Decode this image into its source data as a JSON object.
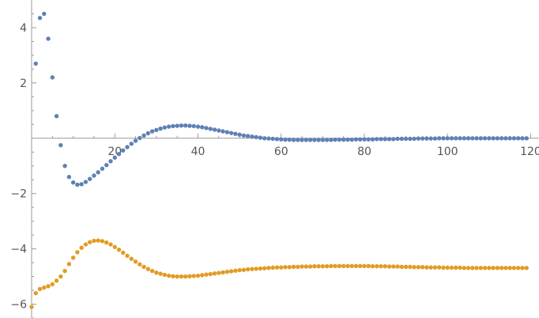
{
  "chart_data": {
    "type": "scatter",
    "title": "",
    "xlabel": "",
    "ylabel": "",
    "xlim": [
      0,
      122
    ],
    "ylim": [
      -6.5,
      5
    ],
    "grid": false,
    "x_ticks": [
      {
        "value": 20,
        "label": "20"
      },
      {
        "value": 40,
        "label": "40"
      },
      {
        "value": 60,
        "label": "60"
      },
      {
        "value": 80,
        "label": "80"
      },
      {
        "value": 100,
        "label": "100"
      },
      {
        "value": 120,
        "label": "120"
      }
    ],
    "y_ticks": [
      {
        "value": 4,
        "label": "4"
      },
      {
        "value": 2,
        "label": "2"
      },
      {
        "value": -2,
        "label": "−2"
      },
      {
        "value": -4,
        "label": "−4"
      },
      {
        "value": -6,
        "label": "−6"
      }
    ],
    "series": [
      {
        "color": "#5E81B5",
        "points": [
          [
            1,
            2.7
          ],
          [
            2,
            4.35
          ],
          [
            3,
            4.5
          ],
          [
            4,
            3.6
          ],
          [
            5,
            2.2
          ],
          [
            6,
            0.8
          ],
          [
            7,
            -0.25
          ],
          [
            8,
            -1.0
          ],
          [
            9,
            -1.4
          ],
          [
            10,
            -1.6
          ],
          [
            11,
            -1.68
          ],
          [
            12,
            -1.66
          ],
          [
            13,
            -1.58
          ],
          [
            14,
            -1.47
          ],
          [
            15,
            -1.35
          ],
          [
            16,
            -1.23
          ],
          [
            17,
            -1.1
          ],
          [
            18,
            -0.97
          ],
          [
            19,
            -0.83
          ],
          [
            20,
            -0.7
          ],
          [
            21,
            -0.57
          ],
          [
            22,
            -0.44
          ],
          [
            23,
            -0.32
          ],
          [
            24,
            -0.2
          ],
          [
            25,
            -0.09
          ],
          [
            26,
            0.01
          ],
          [
            27,
            0.1
          ],
          [
            28,
            0.18
          ],
          [
            29,
            0.25
          ],
          [
            30,
            0.3
          ],
          [
            31,
            0.35
          ],
          [
            32,
            0.39
          ],
          [
            33,
            0.42
          ],
          [
            34,
            0.44
          ],
          [
            35,
            0.45
          ],
          [
            36,
            0.46
          ],
          [
            37,
            0.46
          ],
          [
            38,
            0.45
          ],
          [
            39,
            0.44
          ],
          [
            40,
            0.42
          ],
          [
            41,
            0.4
          ],
          [
            42,
            0.37
          ],
          [
            43,
            0.34
          ],
          [
            44,
            0.31
          ],
          [
            45,
            0.28
          ],
          [
            46,
            0.25
          ],
          [
            47,
            0.22
          ],
          [
            48,
            0.19
          ],
          [
            49,
            0.16
          ],
          [
            50,
            0.13
          ],
          [
            51,
            0.1
          ],
          [
            52,
            0.08
          ],
          [
            53,
            0.06
          ],
          [
            54,
            0.04
          ],
          [
            55,
            0.02
          ],
          [
            56,
            0.0
          ],
          [
            57,
            -0.01
          ],
          [
            58,
            -0.02
          ],
          [
            59,
            -0.03
          ],
          [
            60,
            -0.04
          ],
          [
            61,
            -0.05
          ],
          [
            62,
            -0.05
          ],
          [
            63,
            -0.06
          ],
          [
            64,
            -0.06
          ],
          [
            65,
            -0.06
          ],
          [
            66,
            -0.06
          ],
          [
            67,
            -0.06
          ],
          [
            68,
            -0.06
          ],
          [
            69,
            -0.06
          ],
          [
            70,
            -0.06
          ],
          [
            71,
            -0.06
          ],
          [
            72,
            -0.06
          ],
          [
            73,
            -0.05
          ],
          [
            74,
            -0.05
          ],
          [
            75,
            -0.05
          ],
          [
            76,
            -0.05
          ],
          [
            77,
            -0.05
          ],
          [
            78,
            -0.04
          ],
          [
            79,
            -0.04
          ],
          [
            80,
            -0.04
          ],
          [
            81,
            -0.04
          ],
          [
            82,
            -0.04
          ],
          [
            83,
            -0.03
          ],
          [
            84,
            -0.03
          ],
          [
            85,
            -0.03
          ],
          [
            86,
            -0.03
          ],
          [
            87,
            -0.03
          ],
          [
            88,
            -0.02
          ],
          [
            89,
            -0.02
          ],
          [
            90,
            -0.02
          ],
          [
            91,
            -0.02
          ],
          [
            92,
            -0.02
          ],
          [
            93,
            -0.01
          ],
          [
            94,
            -0.01
          ],
          [
            95,
            -0.01
          ],
          [
            96,
            -0.01
          ],
          [
            97,
            -0.01
          ],
          [
            98,
            0.0
          ],
          [
            99,
            0.0
          ],
          [
            100,
            0.0
          ],
          [
            101,
            0.0
          ],
          [
            102,
            0.0
          ],
          [
            103,
            0.0
          ],
          [
            104,
            0.0
          ],
          [
            105,
            0.0
          ],
          [
            106,
            0.0
          ],
          [
            107,
            0.0
          ],
          [
            108,
            0.0
          ],
          [
            109,
            0.0
          ],
          [
            110,
            0.0
          ],
          [
            111,
            0.0
          ],
          [
            112,
            0.0
          ],
          [
            113,
            0.0
          ],
          [
            114,
            0.0
          ],
          [
            115,
            0.0
          ],
          [
            116,
            0.0
          ],
          [
            117,
            0.0
          ],
          [
            118,
            0.0
          ],
          [
            119,
            0.0
          ]
        ]
      },
      {
        "color": "#E19C24",
        "points": [
          [
            0,
            -6.1
          ],
          [
            1,
            -5.6
          ],
          [
            2,
            -5.45
          ],
          [
            3,
            -5.4
          ],
          [
            4,
            -5.35
          ],
          [
            5,
            -5.28
          ],
          [
            6,
            -5.15
          ],
          [
            7,
            -5.0
          ],
          [
            8,
            -4.8
          ],
          [
            9,
            -4.55
          ],
          [
            10,
            -4.32
          ],
          [
            11,
            -4.12
          ],
          [
            12,
            -3.96
          ],
          [
            13,
            -3.84
          ],
          [
            14,
            -3.76
          ],
          [
            15,
            -3.71
          ],
          [
            16,
            -3.7
          ],
          [
            17,
            -3.72
          ],
          [
            18,
            -3.77
          ],
          [
            19,
            -3.84
          ],
          [
            20,
            -3.93
          ],
          [
            21,
            -4.03
          ],
          [
            22,
            -4.14
          ],
          [
            23,
            -4.25
          ],
          [
            24,
            -4.36
          ],
          [
            25,
            -4.46
          ],
          [
            26,
            -4.56
          ],
          [
            27,
            -4.65
          ],
          [
            28,
            -4.73
          ],
          [
            29,
            -4.8
          ],
          [
            30,
            -4.86
          ],
          [
            31,
            -4.9
          ],
          [
            32,
            -4.94
          ],
          [
            33,
            -4.97
          ],
          [
            34,
            -4.99
          ],
          [
            35,
            -5.0
          ],
          [
            36,
            -5.0
          ],
          [
            37,
            -5.0
          ],
          [
            38,
            -4.99
          ],
          [
            39,
            -4.98
          ],
          [
            40,
            -4.97
          ],
          [
            41,
            -4.95
          ],
          [
            42,
            -4.93
          ],
          [
            43,
            -4.91
          ],
          [
            44,
            -4.89
          ],
          [
            45,
            -4.87
          ],
          [
            46,
            -4.85
          ],
          [
            47,
            -4.83
          ],
          [
            48,
            -4.81
          ],
          [
            49,
            -4.79
          ],
          [
            50,
            -4.77
          ],
          [
            51,
            -4.76
          ],
          [
            52,
            -4.74
          ],
          [
            53,
            -4.73
          ],
          [
            54,
            -4.72
          ],
          [
            55,
            -4.71
          ],
          [
            56,
            -4.7
          ],
          [
            57,
            -4.69
          ],
          [
            58,
            -4.68
          ],
          [
            59,
            -4.67
          ],
          [
            60,
            -4.67
          ],
          [
            61,
            -4.66
          ],
          [
            62,
            -4.66
          ],
          [
            63,
            -4.65
          ],
          [
            64,
            -4.65
          ],
          [
            65,
            -4.64
          ],
          [
            66,
            -4.64
          ],
          [
            67,
            -4.64
          ],
          [
            68,
            -4.63
          ],
          [
            69,
            -4.63
          ],
          [
            70,
            -4.63
          ],
          [
            71,
            -4.63
          ],
          [
            72,
            -4.62
          ],
          [
            73,
            -4.62
          ],
          [
            74,
            -4.62
          ],
          [
            75,
            -4.62
          ],
          [
            76,
            -4.62
          ],
          [
            77,
            -4.62
          ],
          [
            78,
            -4.62
          ],
          [
            79,
            -4.62
          ],
          [
            80,
            -4.62
          ],
          [
            81,
            -4.62
          ],
          [
            82,
            -4.63
          ],
          [
            83,
            -4.63
          ],
          [
            84,
            -4.63
          ],
          [
            85,
            -4.63
          ],
          [
            86,
            -4.64
          ],
          [
            87,
            -4.64
          ],
          [
            88,
            -4.64
          ],
          [
            89,
            -4.65
          ],
          [
            90,
            -4.65
          ],
          [
            91,
            -4.65
          ],
          [
            92,
            -4.66
          ],
          [
            93,
            -4.66
          ],
          [
            94,
            -4.66
          ],
          [
            95,
            -4.67
          ],
          [
            96,
            -4.67
          ],
          [
            97,
            -4.67
          ],
          [
            98,
            -4.67
          ],
          [
            99,
            -4.68
          ],
          [
            100,
            -4.68
          ],
          [
            101,
            -4.68
          ],
          [
            102,
            -4.68
          ],
          [
            103,
            -4.68
          ],
          [
            104,
            -4.69
          ],
          [
            105,
            -4.69
          ],
          [
            106,
            -4.69
          ],
          [
            107,
            -4.69
          ],
          [
            108,
            -4.69
          ],
          [
            109,
            -4.69
          ],
          [
            110,
            -4.69
          ],
          [
            111,
            -4.69
          ],
          [
            112,
            -4.69
          ],
          [
            113,
            -4.69
          ],
          [
            114,
            -4.69
          ],
          [
            115,
            -4.69
          ],
          [
            116,
            -4.69
          ],
          [
            117,
            -4.69
          ],
          [
            118,
            -4.69
          ],
          [
            119,
            -4.69
          ]
        ]
      }
    ]
  }
}
